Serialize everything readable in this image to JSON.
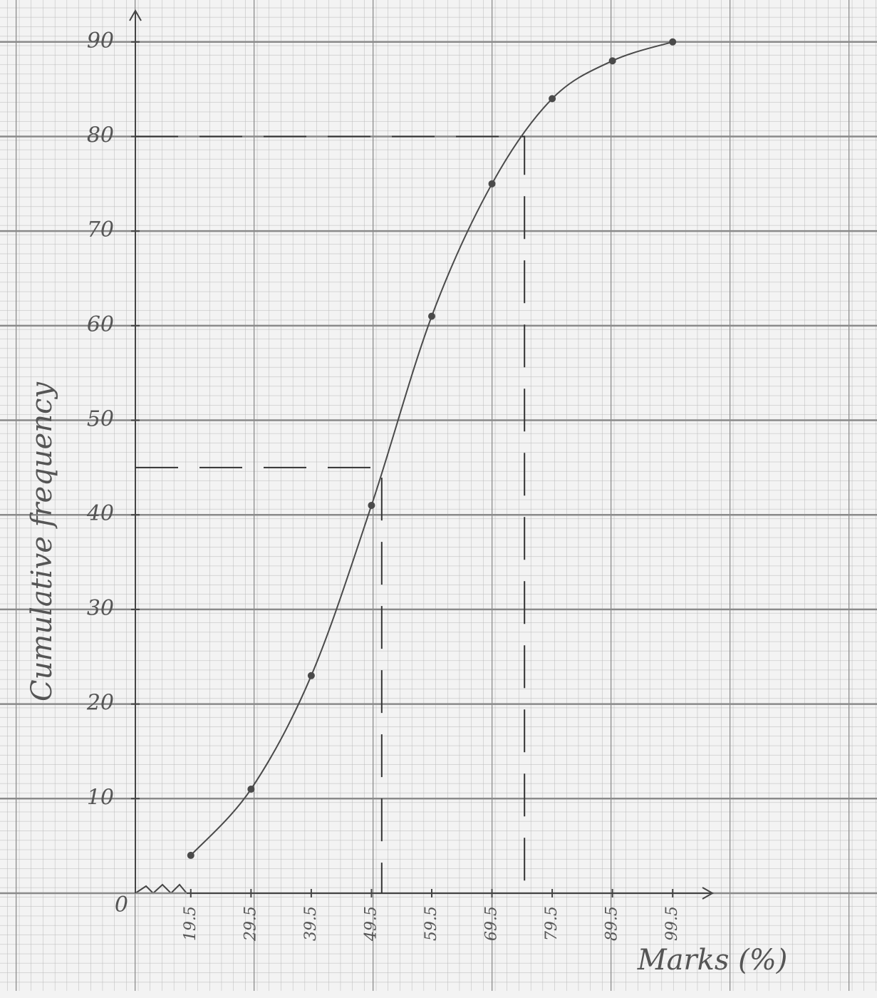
{
  "chart_data": {
    "type": "line",
    "x_label": "Marks (%)",
    "y_label": "Cumulative frequency",
    "x": [
      19.5,
      29.5,
      39.5,
      49.5,
      59.5,
      69.5,
      79.5,
      89.5,
      99.5
    ],
    "series": [
      {
        "color": "#4a4a4a",
        "values": [
          4,
          11,
          23,
          41,
          61,
          75,
          84,
          88,
          90
        ]
      }
    ],
    "xlim": [
      10.3,
      106.1
    ],
    "ylim": [
      0,
      93.3
    ],
    "xticks": [
      19.5,
      29.5,
      39.5,
      49.5,
      59.5,
      69.5,
      79.5,
      89.5,
      99.5
    ],
    "yticks": [
      0,
      10,
      20,
      30,
      40,
      50,
      60,
      70,
      80,
      90
    ],
    "reference_lines": [
      {
        "x": 74.9,
        "y": 80
      },
      {
        "x": 51.2,
        "y": 45
      }
    ],
    "grid": true
  }
}
